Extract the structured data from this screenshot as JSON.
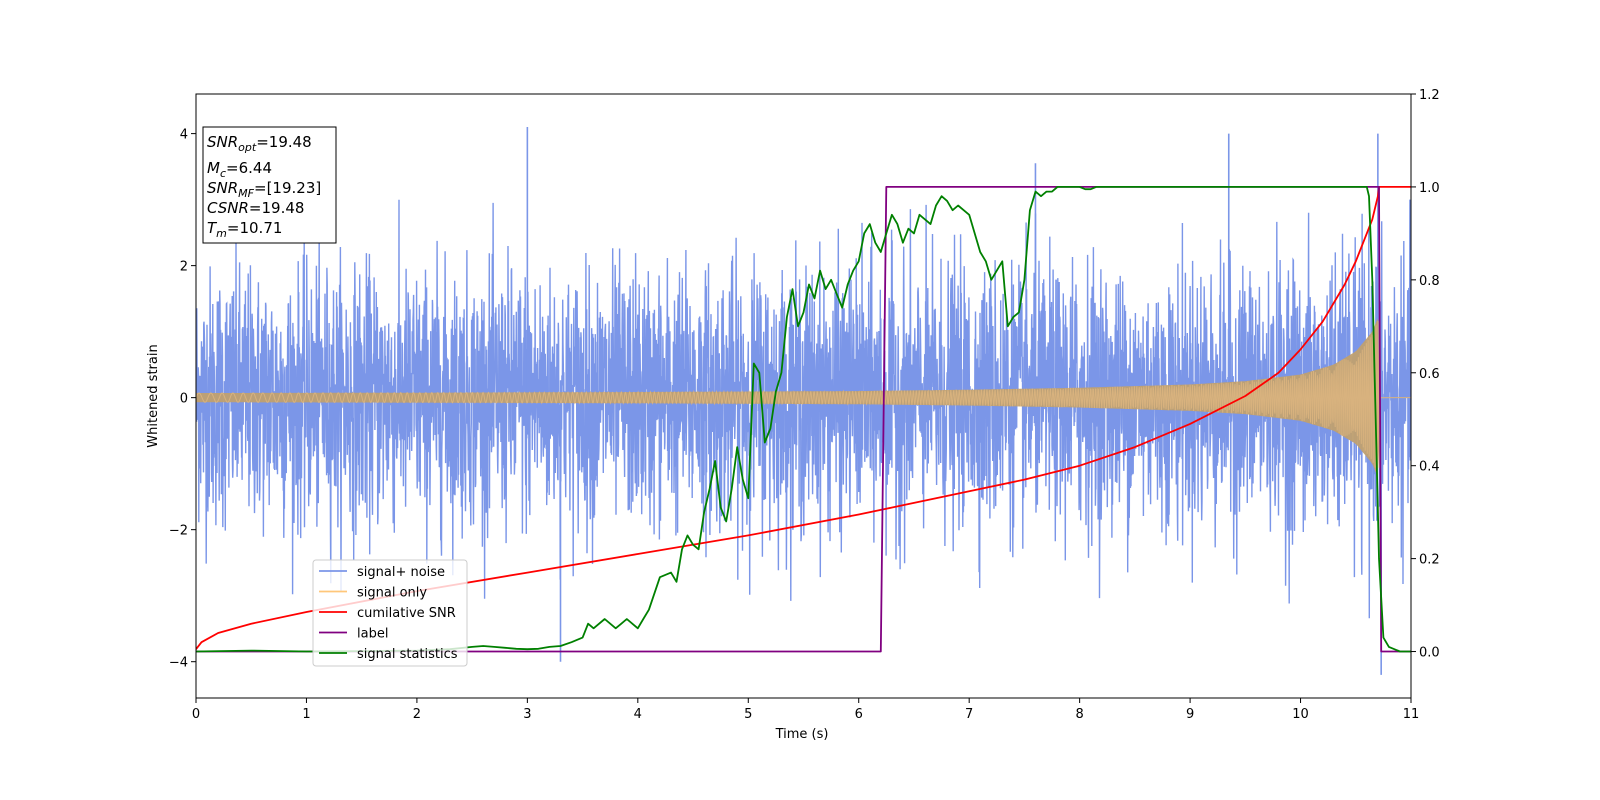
{
  "chart_data": {
    "type": "line",
    "xlabel": "Time (s)",
    "ylabel": "Whitened strain",
    "xlim": [
      0,
      11
    ],
    "ylim_left": [
      -4.55,
      4.6
    ],
    "ylim_right": [
      -0.1,
      1.2
    ],
    "xticks": [
      "0",
      "1",
      "2",
      "3",
      "4",
      "5",
      "6",
      "7",
      "8",
      "9",
      "10",
      "11"
    ],
    "yticks_left": [
      "−4",
      "−2",
      "0",
      "2",
      "4"
    ],
    "yticks_right": [
      "0.0",
      "0.2",
      "0.4",
      "0.6",
      "0.8",
      "1.0",
      "1.2"
    ],
    "grid": false,
    "legend_location": "lower-left",
    "legend": [
      {
        "label": "signal+ noise",
        "color": "#7b96e8"
      },
      {
        "label": "signal only",
        "color": "#ffc77a"
      },
      {
        "label": "cumilative SNR",
        "color": "#ff0000"
      },
      {
        "label": "label",
        "color": "#800080"
      },
      {
        "label": "signal statistics",
        "color": "#008000"
      }
    ],
    "info_box": [
      {
        "base": "SNR",
        "sub": "opt",
        "value": "=19.48"
      },
      {
        "base": "M",
        "sub": "c",
        "value": "=6.44"
      },
      {
        "base": "SNR",
        "sub": "MF",
        "value": "=[19.23]"
      },
      {
        "base": "CSNR",
        "sub": "",
        "value": "=19.48"
      },
      {
        "base": "T",
        "sub": "m",
        "value": "=10.71"
      }
    ],
    "series": [
      {
        "name": "signal+ noise",
        "axis": "left",
        "color": "#7b96e8",
        "noise_std": 0.95,
        "noise_envelope": [
          -3.0,
          3.0
        ],
        "extreme_spikes": [
          [
            3.0,
            4.1
          ],
          [
            10.7,
            4.0
          ],
          [
            9.35,
            4.0
          ],
          [
            10.73,
            -4.2
          ],
          [
            3.3,
            -4.0
          ],
          [
            7.6,
            3.55
          ]
        ]
      },
      {
        "name": "signal only",
        "axis": "left",
        "color": "#ffc77a",
        "amplitude_envelope": {
          "x": [
            0,
            2,
            4,
            6,
            7,
            8,
            9,
            9.5,
            10,
            10.3,
            10.5,
            10.65,
            10.71,
            10.72
          ],
          "y": [
            0.07,
            0.075,
            0.085,
            0.1,
            0.12,
            0.15,
            0.2,
            0.25,
            0.35,
            0.5,
            0.7,
            1.0,
            1.25,
            0.0
          ]
        }
      },
      {
        "name": "cumilative SNR",
        "axis": "right",
        "color": "#ff0000",
        "x": [
          0,
          0.05,
          0.2,
          0.5,
          1,
          2,
          3,
          4,
          5,
          6,
          6.5,
          7,
          7.5,
          8,
          8.5,
          9,
          9.5,
          9.8,
          10,
          10.2,
          10.4,
          10.5,
          10.6,
          10.65,
          10.7,
          10.71,
          11
        ],
        "y": [
          0.005,
          0.02,
          0.04,
          0.06,
          0.085,
          0.13,
          0.17,
          0.21,
          0.25,
          0.295,
          0.32,
          0.345,
          0.37,
          0.4,
          0.44,
          0.49,
          0.55,
          0.6,
          0.65,
          0.71,
          0.79,
          0.84,
          0.9,
          0.93,
          0.98,
          1.0,
          1.0
        ]
      },
      {
        "name": "label",
        "axis": "right",
        "color": "#800080",
        "x": [
          0,
          6.2,
          6.25,
          10.71,
          10.73,
          11
        ],
        "y": [
          0,
          0,
          1,
          1,
          0,
          0
        ]
      },
      {
        "name": "signal statistics",
        "axis": "right",
        "color": "#008000",
        "x": [
          0,
          0.5,
          1,
          1.5,
          2,
          2.3,
          2.5,
          2.6,
          2.7,
          2.8,
          2.9,
          3.0,
          3.1,
          3.2,
          3.3,
          3.4,
          3.5,
          3.55,
          3.6,
          3.7,
          3.8,
          3.85,
          3.9,
          4.0,
          4.05,
          4.1,
          4.2,
          4.3,
          4.35,
          4.4,
          4.45,
          4.5,
          4.55,
          4.6,
          4.65,
          4.7,
          4.75,
          4.8,
          4.85,
          4.9,
          4.95,
          5.0,
          5.05,
          5.1,
          5.15,
          5.2,
          5.25,
          5.3,
          5.35,
          5.4,
          5.45,
          5.5,
          5.55,
          5.6,
          5.65,
          5.7,
          5.75,
          5.8,
          5.85,
          5.9,
          5.95,
          6.0,
          6.05,
          6.1,
          6.15,
          6.2,
          6.25,
          6.3,
          6.35,
          6.4,
          6.45,
          6.5,
          6.55,
          6.6,
          6.65,
          6.7,
          6.75,
          6.8,
          6.85,
          6.9,
          6.95,
          7.0,
          7.05,
          7.1,
          7.15,
          7.2,
          7.25,
          7.3,
          7.35,
          7.4,
          7.45,
          7.5,
          7.55,
          7.6,
          7.65,
          7.7,
          7.75,
          7.8,
          7.85,
          7.9,
          7.95,
          8.0,
          8.05,
          8.1,
          8.15,
          8.2,
          8.25,
          8.3,
          8.35,
          8.4,
          8.5,
          8.6,
          8.7,
          8.8,
          9.0,
          9.5,
          10.0,
          10.3,
          10.5,
          10.6,
          10.62,
          10.65,
          10.68,
          10.71,
          10.75,
          10.8,
          10.9,
          11
        ],
        "y": [
          0.0,
          0.002,
          0.0,
          0.001,
          0.002,
          0.005,
          0.01,
          0.012,
          0.01,
          0.008,
          0.006,
          0.005,
          0.006,
          0.01,
          0.012,
          0.02,
          0.03,
          0.06,
          0.05,
          0.07,
          0.05,
          0.06,
          0.07,
          0.05,
          0.07,
          0.09,
          0.16,
          0.17,
          0.15,
          0.22,
          0.25,
          0.23,
          0.22,
          0.3,
          0.35,
          0.41,
          0.31,
          0.28,
          0.35,
          0.44,
          0.37,
          0.33,
          0.62,
          0.6,
          0.45,
          0.48,
          0.56,
          0.6,
          0.72,
          0.78,
          0.7,
          0.73,
          0.79,
          0.76,
          0.82,
          0.78,
          0.8,
          0.77,
          0.74,
          0.79,
          0.82,
          0.84,
          0.9,
          0.92,
          0.88,
          0.86,
          0.9,
          0.94,
          0.92,
          0.88,
          0.91,
          0.9,
          0.94,
          0.93,
          0.92,
          0.96,
          0.98,
          0.97,
          0.95,
          0.96,
          0.95,
          0.94,
          0.9,
          0.86,
          0.84,
          0.8,
          0.82,
          0.84,
          0.7,
          0.72,
          0.73,
          0.8,
          0.95,
          0.99,
          0.98,
          0.99,
          0.99,
          1.0,
          1.0,
          1.0,
          1.0,
          1.0,
          0.995,
          0.995,
          1.0,
          1.0,
          1.0,
          1.0,
          1.0,
          1.0,
          1.0,
          1.0,
          1.0,
          1.0,
          1.0,
          1.0,
          1.0,
          1.0,
          1.0,
          1.0,
          0.98,
          0.8,
          0.5,
          0.2,
          0.03,
          0.01,
          0.0,
          0.0
        ]
      }
    ]
  }
}
